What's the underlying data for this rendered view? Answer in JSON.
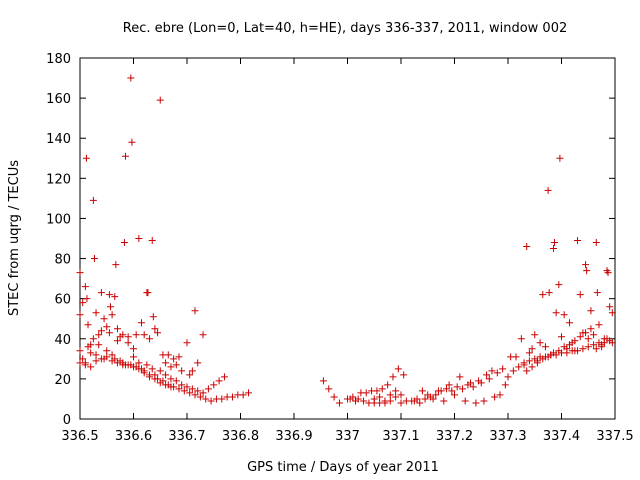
{
  "chart_data": {
    "type": "scatter",
    "title": "Rec. ebre (Lon=0, Lat=40, h=HE), days 336-337, 2011, window 002",
    "xlabel": "GPS time / Days of year 2011",
    "ylabel": "STEC from uqrg / TECUs",
    "xlim": [
      336.5,
      337.5
    ],
    "ylim": [
      0,
      180
    ],
    "xticks": [
      336.5,
      336.6,
      336.7,
      336.8,
      336.9,
      337.0,
      337.1,
      337.2,
      337.3,
      337.4,
      337.5
    ],
    "xtick_labels": [
      "336.5",
      "336.6",
      "336.7",
      "336.8",
      "336.9",
      "337",
      "337.1",
      "337.2",
      "337.3",
      "337.4",
      "337.5"
    ],
    "yticks": [
      0,
      20,
      40,
      60,
      80,
      100,
      120,
      140,
      160,
      180
    ],
    "ytick_labels": [
      "0",
      "20",
      "40",
      "60",
      "80",
      "100",
      "120",
      "140",
      "160",
      "180"
    ],
    "marker": "+",
    "marker_color": "#cc0000",
    "grid": false,
    "legend": false,
    "points": [
      [
        336.5,
        73
      ],
      [
        336.5,
        52
      ],
      [
        336.505,
        58
      ],
      [
        336.51,
        66
      ],
      [
        336.512,
        130
      ],
      [
        336.513,
        60
      ],
      [
        336.515,
        47
      ],
      [
        336.52,
        37
      ],
      [
        336.525,
        109
      ],
      [
        336.527,
        80
      ],
      [
        336.53,
        53
      ],
      [
        336.535,
        42
      ],
      [
        336.54,
        63
      ],
      [
        336.545,
        50
      ],
      [
        336.55,
        46
      ],
      [
        336.555,
        62
      ],
      [
        336.557,
        56
      ],
      [
        336.56,
        52
      ],
      [
        336.565,
        61
      ],
      [
        336.567,
        77
      ],
      [
        336.57,
        45
      ],
      [
        336.575,
        41
      ],
      [
        336.58,
        42
      ],
      [
        336.583,
        88
      ],
      [
        336.585,
        131
      ],
      [
        336.59,
        41
      ],
      [
        336.595,
        170
      ],
      [
        336.597,
        138
      ],
      [
        336.6,
        35
      ],
      [
        336.605,
        42
      ],
      [
        336.61,
        90
      ],
      [
        336.615,
        48
      ],
      [
        336.62,
        42
      ],
      [
        336.625,
        63
      ],
      [
        336.627,
        63
      ],
      [
        336.63,
        40
      ],
      [
        336.635,
        89
      ],
      [
        336.637,
        51
      ],
      [
        336.64,
        45
      ],
      [
        336.645,
        43
      ],
      [
        336.65,
        159
      ],
      [
        336.655,
        32
      ],
      [
        336.66,
        28
      ],
      [
        336.665,
        32
      ],
      [
        336.67,
        26
      ],
      [
        336.675,
        30
      ],
      [
        336.68,
        27
      ],
      [
        336.685,
        31
      ],
      [
        336.69,
        24
      ],
      [
        336.7,
        38
      ],
      [
        336.705,
        22
      ],
      [
        336.71,
        24
      ],
      [
        336.715,
        54
      ],
      [
        336.72,
        28
      ],
      [
        336.73,
        42
      ],
      [
        336.5,
        34
      ],
      [
        336.505,
        30
      ],
      [
        336.51,
        28
      ],
      [
        336.515,
        36
      ],
      [
        336.52,
        33
      ],
      [
        336.525,
        40
      ],
      [
        336.53,
        32
      ],
      [
        336.535,
        37
      ],
      [
        336.54,
        44
      ],
      [
        336.545,
        30
      ],
      [
        336.55,
        34
      ],
      [
        336.555,
        43
      ],
      [
        336.56,
        32
      ],
      [
        336.565,
        30
      ],
      [
        336.57,
        39
      ],
      [
        336.575,
        29
      ],
      [
        336.58,
        28
      ],
      [
        336.585,
        27
      ],
      [
        336.59,
        38
      ],
      [
        336.595,
        27
      ],
      [
        336.6,
        31
      ],
      [
        336.605,
        26
      ],
      [
        336.61,
        28
      ],
      [
        336.615,
        25
      ],
      [
        336.62,
        24
      ],
      [
        336.625,
        27
      ],
      [
        336.63,
        22
      ],
      [
        336.635,
        25
      ],
      [
        336.64,
        22
      ],
      [
        336.645,
        20
      ],
      [
        336.65,
        24
      ],
      [
        336.655,
        19
      ],
      [
        336.66,
        22
      ],
      [
        336.665,
        17
      ],
      [
        336.67,
        20
      ],
      [
        336.675,
        16
      ],
      [
        336.68,
        19
      ],
      [
        336.685,
        15
      ],
      [
        336.69,
        17
      ],
      [
        336.695,
        14
      ],
      [
        336.7,
        16
      ],
      [
        336.705,
        13
      ],
      [
        336.71,
        15
      ],
      [
        336.715,
        12
      ],
      [
        336.72,
        14
      ],
      [
        336.725,
        11
      ],
      [
        336.73,
        13
      ],
      [
        336.735,
        10
      ],
      [
        336.74,
        15
      ],
      [
        336.745,
        9
      ],
      [
        336.75,
        17
      ],
      [
        336.755,
        10
      ],
      [
        336.76,
        19
      ],
      [
        336.765,
        10
      ],
      [
        336.77,
        21
      ],
      [
        336.775,
        11
      ],
      [
        336.785,
        11
      ],
      [
        336.795,
        12
      ],
      [
        336.805,
        12
      ],
      [
        336.815,
        13
      ],
      [
        336.5,
        28
      ],
      [
        336.51,
        27
      ],
      [
        336.52,
        26
      ],
      [
        336.53,
        29
      ],
      [
        336.54,
        30
      ],
      [
        336.55,
        31
      ],
      [
        336.56,
        29
      ],
      [
        336.57,
        28
      ],
      [
        336.58,
        27
      ],
      [
        336.59,
        27
      ],
      [
        336.6,
        26
      ],
      [
        336.61,
        25
      ],
      [
        336.62,
        23
      ],
      [
        336.63,
        21
      ],
      [
        336.64,
        20
      ],
      [
        336.65,
        18
      ],
      [
        336.66,
        17
      ],
      [
        336.67,
        16
      ],
      [
        336.955,
        19
      ],
      [
        336.965,
        15
      ],
      [
        336.975,
        11
      ],
      [
        336.985,
        8
      ],
      [
        337.0,
        10
      ],
      [
        337.005,
        10
      ],
      [
        337.01,
        11
      ],
      [
        337.015,
        9
      ],
      [
        337.02,
        10
      ],
      [
        337.025,
        13
      ],
      [
        337.03,
        9
      ],
      [
        337.035,
        13
      ],
      [
        337.04,
        8
      ],
      [
        337.045,
        14
      ],
      [
        337.05,
        8
      ],
      [
        337.055,
        14
      ],
      [
        337.06,
        8
      ],
      [
        337.065,
        15
      ],
      [
        337.07,
        9
      ],
      [
        337.075,
        17
      ],
      [
        337.08,
        12
      ],
      [
        337.085,
        21
      ],
      [
        337.09,
        14
      ],
      [
        337.095,
        25
      ],
      [
        337.1,
        12
      ],
      [
        337.105,
        22
      ],
      [
        337.11,
        9
      ],
      [
        337.12,
        9
      ],
      [
        337.13,
        10
      ],
      [
        337.14,
        14
      ],
      [
        337.15,
        12
      ],
      [
        337.16,
        10
      ],
      [
        337.17,
        14
      ],
      [
        337.18,
        9
      ],
      [
        337.19,
        17
      ],
      [
        337.2,
        12
      ],
      [
        337.21,
        21
      ],
      [
        337.22,
        9
      ],
      [
        337.23,
        18
      ],
      [
        337.24,
        8
      ],
      [
        337.05,
        10
      ],
      [
        337.06,
        11
      ],
      [
        337.07,
        8
      ],
      [
        337.08,
        9
      ],
      [
        337.09,
        11
      ],
      [
        337.1,
        8
      ],
      [
        337.125,
        9
      ],
      [
        337.135,
        8
      ],
      [
        337.145,
        10
      ],
      [
        337.155,
        11
      ],
      [
        337.165,
        12
      ],
      [
        337.175,
        14
      ],
      [
        337.185,
        15
      ],
      [
        337.195,
        14
      ],
      [
        337.205,
        16
      ],
      [
        337.215,
        15
      ],
      [
        337.225,
        17
      ],
      [
        337.235,
        16
      ],
      [
        337.245,
        19
      ],
      [
        337.25,
        18
      ],
      [
        337.255,
        9
      ],
      [
        337.26,
        22
      ],
      [
        337.265,
        20
      ],
      [
        337.27,
        24
      ],
      [
        337.275,
        11
      ],
      [
        337.28,
        23
      ],
      [
        337.285,
        12
      ],
      [
        337.29,
        25
      ],
      [
        337.295,
        17
      ],
      [
        337.3,
        21
      ],
      [
        337.305,
        31
      ],
      [
        337.31,
        24
      ],
      [
        337.315,
        31
      ],
      [
        337.32,
        26
      ],
      [
        337.325,
        40
      ],
      [
        337.33,
        27
      ],
      [
        337.335,
        86
      ],
      [
        337.34,
        33
      ],
      [
        337.345,
        35
      ],
      [
        337.35,
        42
      ],
      [
        337.355,
        29
      ],
      [
        337.36,
        38
      ],
      [
        337.365,
        62
      ],
      [
        337.37,
        36
      ],
      [
        337.375,
        114
      ],
      [
        337.377,
        63
      ],
      [
        337.38,
        32
      ],
      [
        337.385,
        85
      ],
      [
        337.387,
        88
      ],
      [
        337.39,
        53
      ],
      [
        337.395,
        67
      ],
      [
        337.397,
        130
      ],
      [
        337.4,
        41
      ],
      [
        337.405,
        52
      ],
      [
        337.41,
        35
      ],
      [
        337.415,
        48
      ],
      [
        337.42,
        38
      ],
      [
        337.425,
        34
      ],
      [
        337.43,
        89
      ],
      [
        337.435,
        62
      ],
      [
        337.44,
        43
      ],
      [
        337.445,
        77
      ],
      [
        337.447,
        74
      ],
      [
        337.45,
        40
      ],
      [
        337.455,
        54
      ],
      [
        337.46,
        42
      ],
      [
        337.465,
        88
      ],
      [
        337.467,
        63
      ],
      [
        337.47,
        47
      ],
      [
        337.475,
        36
      ],
      [
        337.48,
        40
      ],
      [
        337.485,
        74
      ],
      [
        337.487,
        73
      ],
      [
        337.49,
        56
      ],
      [
        337.495,
        53
      ],
      [
        337.33,
        28
      ],
      [
        337.34,
        29
      ],
      [
        337.35,
        30
      ],
      [
        337.36,
        31
      ],
      [
        337.37,
        31
      ],
      [
        337.38,
        32
      ],
      [
        337.39,
        32
      ],
      [
        337.4,
        33
      ],
      [
        337.41,
        33
      ],
      [
        337.42,
        34
      ],
      [
        337.43,
        34
      ],
      [
        337.44,
        35
      ],
      [
        337.45,
        36
      ],
      [
        337.46,
        37
      ],
      [
        337.47,
        38
      ],
      [
        337.48,
        38
      ],
      [
        337.49,
        39
      ],
      [
        337.335,
        24
      ],
      [
        337.345,
        26
      ],
      [
        337.355,
        28
      ],
      [
        337.365,
        30
      ],
      [
        337.375,
        31
      ],
      [
        337.385,
        33
      ],
      [
        337.395,
        34
      ],
      [
        337.405,
        36
      ],
      [
        337.415,
        37
      ],
      [
        337.425,
        39
      ],
      [
        337.435,
        41
      ],
      [
        337.445,
        43
      ],
      [
        337.455,
        45
      ],
      [
        337.465,
        35
      ],
      [
        337.475,
        37
      ],
      [
        337.485,
        40
      ],
      [
        337.495,
        38
      ]
    ]
  }
}
